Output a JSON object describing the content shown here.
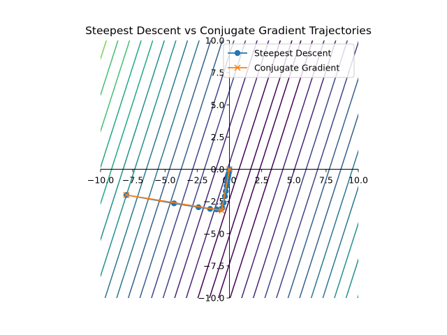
{
  "chart_data": {
    "type": "line",
    "title": "Steepest Descent vs Conjugate Gradient Trajectories",
    "xlabel": "",
    "ylabel": "",
    "xlim": [
      -10,
      10
    ],
    "ylim": [
      -10,
      10
    ],
    "spines": "centered at origin",
    "grid": false,
    "legend_position": "top-right",
    "x_ticks": [
      -10,
      -7.5,
      -5,
      -2.5,
      0,
      2.5,
      5,
      7.5,
      10
    ],
    "x_tick_labels": [
      "−10.0",
      "−7.5",
      "−5.0",
      "−2.5",
      "0.0",
      "2.5",
      "5.0",
      "7.5",
      "10.0"
    ],
    "y_ticks": [
      -10,
      -7.5,
      -5,
      -2.5,
      0,
      2.5,
      5,
      7.5,
      10
    ],
    "y_tick_labels": [
      "−10.0",
      "−7.5",
      "−5.0",
      "−2.5",
      "0.0",
      "2.5",
      "5.0",
      "7.5",
      "10.0"
    ],
    "contour": {
      "description": "contour lines of a quadratic objective, tilted valleys",
      "levels": 22,
      "colormap": "viridis"
    },
    "series": [
      {
        "name": "Steepest Descent",
        "marker": "circle",
        "color": "#1f77b4",
        "points": [
          [
            -8.0,
            -2.0
          ],
          [
            -4.3,
            -2.65
          ],
          [
            -2.4,
            -2.95
          ],
          [
            -1.5,
            -3.08
          ],
          [
            -1.0,
            -3.12
          ],
          [
            -0.7,
            -3.12
          ],
          [
            -0.55,
            -3.0
          ],
          [
            -0.45,
            -2.6
          ],
          [
            -0.35,
            -2.1
          ],
          [
            -0.28,
            -1.7
          ],
          [
            -0.22,
            -1.3
          ],
          [
            -0.17,
            -1.0
          ],
          [
            -0.13,
            -0.75
          ],
          [
            -0.1,
            -0.55
          ],
          [
            -0.07,
            -0.4
          ],
          [
            -0.05,
            -0.28
          ],
          [
            -0.03,
            -0.18
          ],
          [
            -0.02,
            -0.1
          ],
          [
            0.0,
            0.0
          ]
        ]
      },
      {
        "name": "Conjugate Gradient",
        "marker": "x",
        "color": "#ff7f0e",
        "points": [
          [
            -8.0,
            -2.0
          ],
          [
            -0.6,
            -3.2
          ],
          [
            0.0,
            0.0
          ]
        ]
      }
    ]
  }
}
